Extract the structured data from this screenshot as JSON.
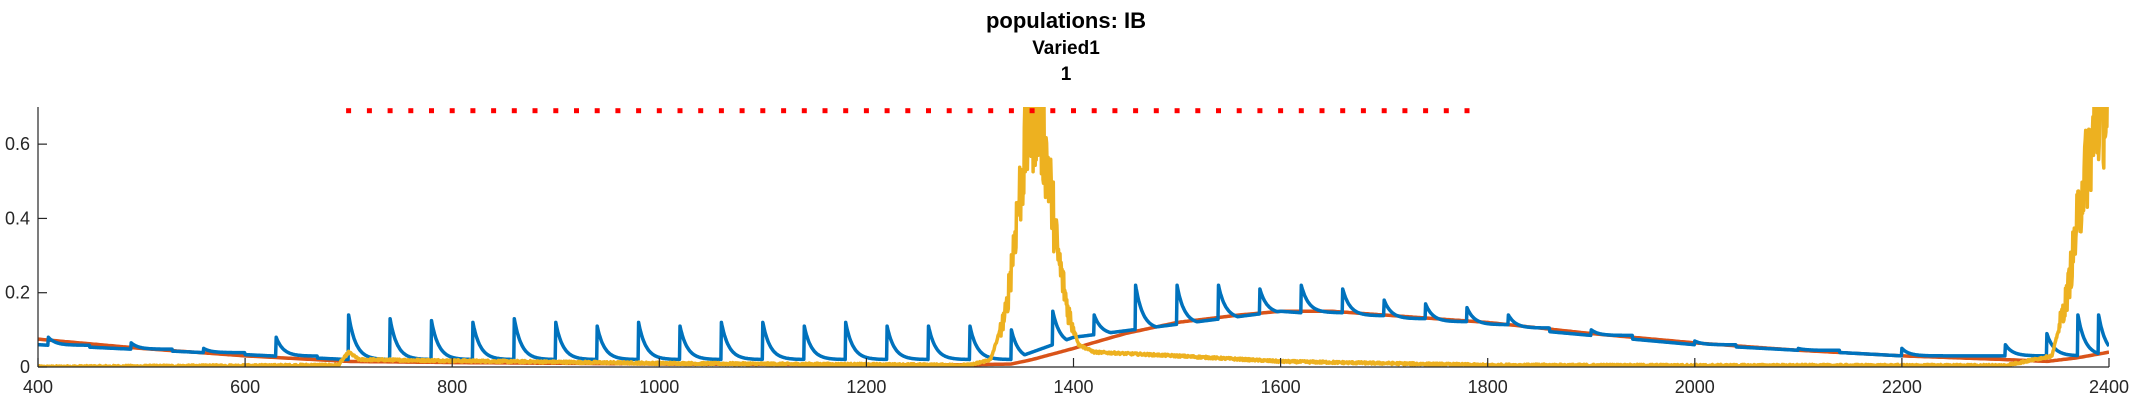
{
  "chart_data": {
    "type": "line",
    "title": "populations: IB",
    "subtitle": "Varied1",
    "subtitle2": "1",
    "xlabel": "",
    "ylabel": "",
    "xlim": [
      400,
      2400
    ],
    "ylim": [
      0,
      0.7
    ],
    "grid": false,
    "x_ticks": [
      400,
      600,
      800,
      1000,
      1200,
      1400,
      1600,
      1800,
      2000,
      2200,
      2400
    ],
    "x_tick_labels": [
      "400",
      "600",
      "800",
      "1000",
      "1200",
      "1400",
      "1600",
      "1800",
      "2000",
      "2200",
      "2400"
    ],
    "y_ticks": [
      0,
      0.2,
      0.4,
      0.6
    ],
    "y_tick_labels": [
      "0",
      "0.2",
      "0.4",
      "0.6"
    ],
    "colors": {
      "blue": "#0072BD",
      "orange": "#D95319",
      "yellow": "#EDB120",
      "red": "#FF0000",
      "axis": "#262626"
    },
    "series": [
      {
        "color": "#0072BD",
        "style": "pulse-train",
        "baseline": [
          [
            400,
            0.06
          ],
          [
            700,
            0.02
          ],
          [
            1000,
            0.02
          ],
          [
            1300,
            0.02
          ],
          [
            1340,
            0.02
          ],
          [
            1400,
            0.08
          ],
          [
            1600,
            0.15
          ],
          [
            1800,
            0.11
          ],
          [
            2000,
            0.06
          ],
          [
            2200,
            0.03
          ],
          [
            2400,
            0.03
          ]
        ],
        "pulses": [
          [
            410,
            0.08
          ],
          [
            490,
            0.065
          ],
          [
            560,
            0.05
          ],
          [
            630,
            0.08
          ],
          [
            700,
            0.14
          ],
          [
            740,
            0.13
          ],
          [
            780,
            0.125
          ],
          [
            820,
            0.12
          ],
          [
            860,
            0.13
          ],
          [
            900,
            0.12
          ],
          [
            940,
            0.11
          ],
          [
            980,
            0.12
          ],
          [
            1020,
            0.11
          ],
          [
            1060,
            0.12
          ],
          [
            1100,
            0.12
          ],
          [
            1140,
            0.11
          ],
          [
            1180,
            0.12
          ],
          [
            1220,
            0.11
          ],
          [
            1260,
            0.11
          ],
          [
            1300,
            0.11
          ],
          [
            1340,
            0.1
          ],
          [
            1380,
            0.15
          ],
          [
            1420,
            0.14
          ],
          [
            1460,
            0.22
          ],
          [
            1500,
            0.22
          ],
          [
            1540,
            0.22
          ],
          [
            1580,
            0.21
          ],
          [
            1620,
            0.22
          ],
          [
            1660,
            0.21
          ],
          [
            1700,
            0.18
          ],
          [
            1740,
            0.17
          ],
          [
            1780,
            0.16
          ],
          [
            1820,
            0.14
          ],
          [
            1900,
            0.1
          ],
          [
            2000,
            0.07
          ],
          [
            2100,
            0.05
          ],
          [
            2200,
            0.05
          ],
          [
            2300,
            0.06
          ],
          [
            2340,
            0.09
          ],
          [
            2370,
            0.14
          ],
          [
            2390,
            0.14
          ]
        ]
      },
      {
        "color": "#D95319",
        "style": "smooth",
        "points": [
          [
            400,
            0.075
          ],
          [
            500,
            0.05
          ],
          [
            600,
            0.03
          ],
          [
            700,
            0.015
          ],
          [
            800,
            0.012
          ],
          [
            900,
            0.01
          ],
          [
            1000,
            0.008
          ],
          [
            1100,
            0.007
          ],
          [
            1200,
            0.006
          ],
          [
            1300,
            0.006
          ],
          [
            1340,
            0.008
          ],
          [
            1360,
            0.02
          ],
          [
            1400,
            0.05
          ],
          [
            1450,
            0.09
          ],
          [
            1500,
            0.12
          ],
          [
            1560,
            0.14
          ],
          [
            1600,
            0.15
          ],
          [
            1650,
            0.15
          ],
          [
            1700,
            0.14
          ],
          [
            1800,
            0.12
          ],
          [
            1900,
            0.09
          ],
          [
            2000,
            0.065
          ],
          [
            2100,
            0.045
          ],
          [
            2200,
            0.03
          ],
          [
            2300,
            0.02
          ],
          [
            2340,
            0.015
          ],
          [
            2370,
            0.025
          ],
          [
            2400,
            0.04
          ]
        ]
      },
      {
        "color": "#EDB120",
        "style": "noisy",
        "points": [
          [
            400,
            0.0
          ],
          [
            690,
            0.005
          ],
          [
            700,
            0.04
          ],
          [
            710,
            0.02
          ],
          [
            1000,
            0.01
          ],
          [
            1300,
            0.005
          ],
          [
            1320,
            0.02
          ],
          [
            1335,
            0.15
          ],
          [
            1345,
            0.4
          ],
          [
            1355,
            0.62
          ],
          [
            1365,
            0.7
          ],
          [
            1375,
            0.55
          ],
          [
            1385,
            0.3
          ],
          [
            1395,
            0.15
          ],
          [
            1405,
            0.06
          ],
          [
            1420,
            0.04
          ],
          [
            1500,
            0.03
          ],
          [
            1600,
            0.015
          ],
          [
            1800,
            0.005
          ],
          [
            2000,
            0.004
          ],
          [
            2300,
            0.004
          ],
          [
            2345,
            0.03
          ],
          [
            2360,
            0.2
          ],
          [
            2375,
            0.5
          ],
          [
            2390,
            0.68
          ],
          [
            2400,
            0.7
          ]
        ]
      }
    ],
    "annotation": {
      "type": "dotted-line",
      "color": "#FF0000",
      "x": [
        700,
        1780
      ],
      "y": 0.69
    }
  }
}
